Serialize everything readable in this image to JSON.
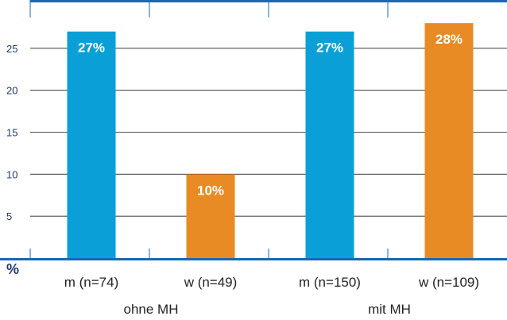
{
  "chart_data": {
    "type": "bar",
    "categories": [
      "m (n=74)",
      "w (n=49)",
      "m (n=150)",
      "w (n=109)"
    ],
    "groups": [
      {
        "label": "ohne MH",
        "categories": [
          0,
          1
        ]
      },
      {
        "label": "mit MH",
        "categories": [
          2,
          3
        ]
      }
    ],
    "values": [
      27,
      10,
      27,
      28
    ],
    "bar_labels": [
      "27%",
      "10%",
      "27%",
      "28%"
    ],
    "bar_colors": [
      "#0aa0d7",
      "#e98b24",
      "#0aa0d7",
      "#e98b24"
    ],
    "y_ticks": [
      5,
      10,
      15,
      20,
      25
    ],
    "ylim": [
      0,
      30
    ],
    "ylabel": "%",
    "grid": true,
    "axis_color": "#1769b4"
  }
}
